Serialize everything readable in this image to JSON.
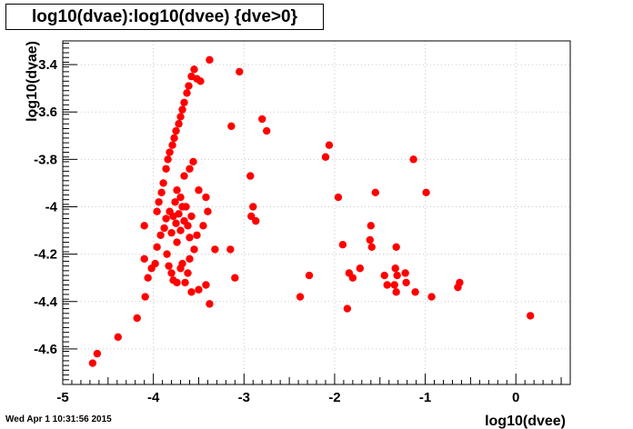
{
  "chart_data": {
    "type": "scatter",
    "title": "log10(dvae):log10(dvee) {dve>0}",
    "xlabel": "log10(dvee)",
    "ylabel": "log10(dvae)",
    "xlim": [
      -5,
      0.6
    ],
    "ylim": [
      -4.75,
      -3.3
    ],
    "xticks": [
      -5,
      -4,
      -3,
      -2,
      -1,
      0
    ],
    "xtick_labels": [
      "-5",
      "-4",
      "-3",
      "-2",
      "-1",
      "0"
    ],
    "yticks": [
      -4.6,
      -4.4,
      -4.2,
      -4.0,
      -3.8,
      -3.6,
      -3.4
    ],
    "ytick_labels": [
      "-4.6",
      "-4.4",
      "-4.2",
      "-4",
      "-3.8",
      "-3.6",
      "-3.4"
    ],
    "grid": true,
    "marker_color": "#ff0000",
    "points": [
      {
        "x": -4.67,
        "y": -4.66
      },
      {
        "x": -4.62,
        "y": -4.62
      },
      {
        "x": -4.39,
        "y": -4.55
      },
      {
        "x": -4.18,
        "y": -4.47
      },
      {
        "x": -4.09,
        "y": -4.38
      },
      {
        "x": -4.1,
        "y": -4.22
      },
      {
        "x": -4.02,
        "y": -4.26
      },
      {
        "x": -3.98,
        "y": -4.24
      },
      {
        "x": -4.06,
        "y": -4.3
      },
      {
        "x": -4.1,
        "y": -4.08
      },
      {
        "x": -3.96,
        "y": -4.17
      },
      {
        "x": -3.92,
        "y": -4.12
      },
      {
        "x": -3.88,
        "y": -4.09
      },
      {
        "x": -3.85,
        "y": -4.2
      },
      {
        "x": -3.83,
        "y": -4.25
      },
      {
        "x": -3.8,
        "y": -4.28
      },
      {
        "x": -3.78,
        "y": -4.31
      },
      {
        "x": -3.74,
        "y": -4.32
      },
      {
        "x": -3.7,
        "y": -4.26
      },
      {
        "x": -3.68,
        "y": -4.24
      },
      {
        "x": -3.86,
        "y": -4.05
      },
      {
        "x": -3.82,
        "y": -4.02
      },
      {
        "x": -3.78,
        "y": -4.04
      },
      {
        "x": -3.75,
        "y": -4.07
      },
      {
        "x": -3.72,
        "y": -4.03
      },
      {
        "x": -3.68,
        "y": -4.0
      },
      {
        "x": -3.66,
        "y": -4.06
      },
      {
        "x": -3.8,
        "y": -4.11
      },
      {
        "x": -3.74,
        "y": -4.15
      },
      {
        "x": -3.7,
        "y": -4.1
      },
      {
        "x": -3.62,
        "y": -4.08
      },
      {
        "x": -3.6,
        "y": -4.13
      },
      {
        "x": -3.76,
        "y": -3.98
      },
      {
        "x": -3.7,
        "y": -3.96
      },
      {
        "x": -3.64,
        "y": -4.0
      },
      {
        "x": -3.58,
        "y": -4.04
      },
      {
        "x": -3.6,
        "y": -4.22
      },
      {
        "x": -3.55,
        "y": -4.18
      },
      {
        "x": -3.52,
        "y": -4.12
      },
      {
        "x": -3.62,
        "y": -4.28
      },
      {
        "x": -3.65,
        "y": -4.32
      },
      {
        "x": -3.58,
        "y": -4.36
      },
      {
        "x": -3.5,
        "y": -4.35
      },
      {
        "x": -3.42,
        "y": -4.33
      },
      {
        "x": -3.38,
        "y": -4.41
      },
      {
        "x": -3.4,
        "y": -4.02
      },
      {
        "x": -3.45,
        "y": -4.08
      },
      {
        "x": -3.32,
        "y": -4.18
      },
      {
        "x": -3.15,
        "y": -4.18
      },
      {
        "x": -3.1,
        "y": -4.3
      },
      {
        "x": -3.96,
        "y": -4.02
      },
      {
        "x": -3.94,
        "y": -3.98
      },
      {
        "x": -3.91,
        "y": -3.94
      },
      {
        "x": -3.89,
        "y": -3.9
      },
      {
        "x": -3.86,
        "y": -3.84
      },
      {
        "x": -3.84,
        "y": -3.8
      },
      {
        "x": -3.82,
        "y": -3.77
      },
      {
        "x": -3.79,
        "y": -3.74
      },
      {
        "x": -3.77,
        "y": -3.71
      },
      {
        "x": -3.75,
        "y": -3.68
      },
      {
        "x": -3.72,
        "y": -3.65
      },
      {
        "x": -3.7,
        "y": -3.62
      },
      {
        "x": -3.68,
        "y": -3.59
      },
      {
        "x": -3.66,
        "y": -3.56
      },
      {
        "x": -3.63,
        "y": -3.52
      },
      {
        "x": -3.61,
        "y": -3.49
      },
      {
        "x": -3.58,
        "y": -3.45
      },
      {
        "x": -3.55,
        "y": -3.42
      },
      {
        "x": -3.52,
        "y": -3.46
      },
      {
        "x": -3.48,
        "y": -3.47
      },
      {
        "x": -3.38,
        "y": -3.38
      },
      {
        "x": -3.05,
        "y": -3.43
      },
      {
        "x": -3.14,
        "y": -3.66
      },
      {
        "x": -2.8,
        "y": -3.63
      },
      {
        "x": -2.75,
        "y": -3.68
      },
      {
        "x": -3.66,
        "y": -3.87
      },
      {
        "x": -3.6,
        "y": -3.84
      },
      {
        "x": -3.56,
        "y": -3.81
      },
      {
        "x": -3.74,
        "y": -3.93
      },
      {
        "x": -3.5,
        "y": -3.93
      },
      {
        "x": -3.42,
        "y": -3.96
      },
      {
        "x": -2.93,
        "y": -3.87
      },
      {
        "x": -2.9,
        "y": -4.0
      },
      {
        "x": -2.92,
        "y": -4.04
      },
      {
        "x": -2.87,
        "y": -4.06
      },
      {
        "x": -2.38,
        "y": -4.38
      },
      {
        "x": -2.28,
        "y": -4.29
      },
      {
        "x": -2.1,
        "y": -3.79
      },
      {
        "x": -2.06,
        "y": -3.74
      },
      {
        "x": -1.96,
        "y": -3.96
      },
      {
        "x": -1.91,
        "y": -4.16
      },
      {
        "x": -1.84,
        "y": -4.28
      },
      {
        "x": -1.8,
        "y": -4.3
      },
      {
        "x": -1.86,
        "y": -4.43
      },
      {
        "x": -1.72,
        "y": -4.26
      },
      {
        "x": -1.6,
        "y": -4.08
      },
      {
        "x": -1.61,
        "y": -4.14
      },
      {
        "x": -1.59,
        "y": -4.17
      },
      {
        "x": -1.55,
        "y": -3.94
      },
      {
        "x": -1.45,
        "y": -4.29
      },
      {
        "x": -1.42,
        "y": -4.33
      },
      {
        "x": -1.32,
        "y": -4.17
      },
      {
        "x": -1.33,
        "y": -4.26
      },
      {
        "x": -1.31,
        "y": -4.29
      },
      {
        "x": -1.34,
        "y": -4.33
      },
      {
        "x": -1.32,
        "y": -4.36
      },
      {
        "x": -1.22,
        "y": -4.28
      },
      {
        "x": -1.21,
        "y": -4.32
      },
      {
        "x": -1.13,
        "y": -3.8
      },
      {
        "x": -1.11,
        "y": -4.36
      },
      {
        "x": -0.99,
        "y": -3.94
      },
      {
        "x": -0.93,
        "y": -4.38
      },
      {
        "x": -0.62,
        "y": -4.32
      },
      {
        "x": -0.64,
        "y": -4.34
      },
      {
        "x": 0.16,
        "y": -4.46
      }
    ]
  },
  "footer": {
    "timestamp": "Wed Apr  1 10:31:56 2015"
  }
}
